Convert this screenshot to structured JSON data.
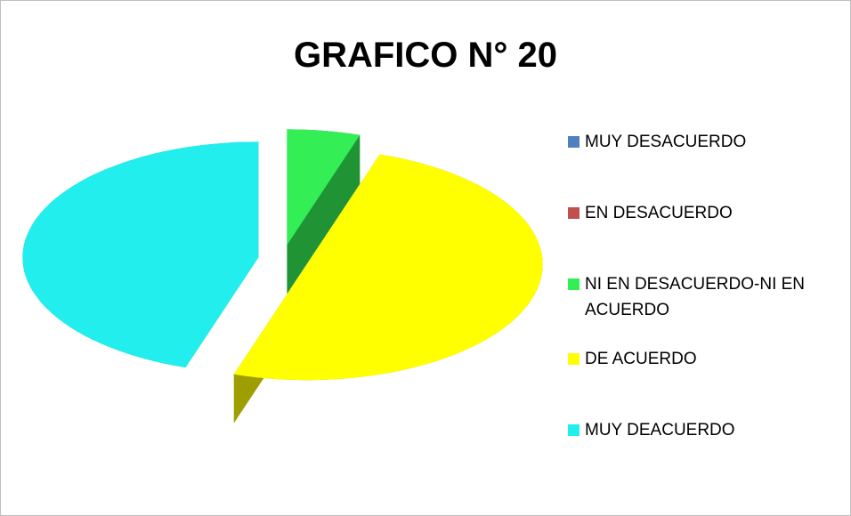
{
  "chart_data": {
    "type": "pie",
    "title": "GRAFICO N° 20",
    "categories": [
      "MUY DESACUERDO",
      "EN DESACUERDO",
      "NI EN DESACUERDO-NI EN ACUERDO",
      "DE ACUERDO",
      "MUY DEACUERDO"
    ],
    "values": [
      0,
      0,
      5,
      50,
      45
    ],
    "colors": [
      "#4f81bd",
      "#c0504d",
      "#33ee55",
      "#ffff00",
      "#22eeee"
    ],
    "legend": "right"
  }
}
